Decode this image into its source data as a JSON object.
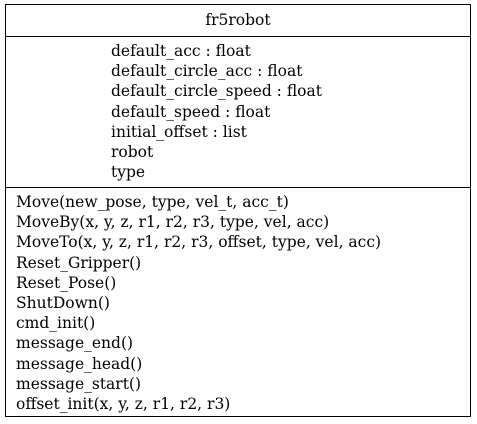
{
  "class": {
    "name": "fr5robot",
    "attributes": [
      "default_acc : float",
      "default_circle_acc : float",
      "default_circle_speed : float",
      "default_speed : float",
      "initial_offset : list",
      "robot",
      "type"
    ],
    "methods": [
      "Move(new_pose, type, vel_t, acc_t)",
      "MoveBy(x, y, z, r1, r2, r3, type, vel, acc)",
      "MoveTo(x, y, z, r1, r2, r3, offset, type, vel, acc)",
      "Reset_Gripper()",
      "Reset_Pose()",
      "ShutDown()",
      "cmd_init()",
      "message_end()",
      "message_head()",
      "message_start()",
      "offset_init(x, y, z, r1, r2, r3)"
    ]
  }
}
